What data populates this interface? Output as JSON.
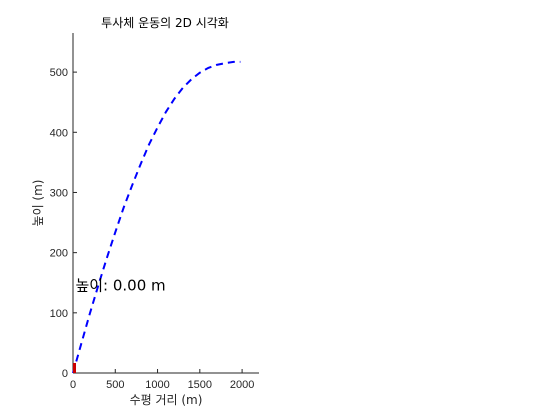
{
  "chart_data": {
    "type": "line",
    "title": "투사체 운동의 2D 시각화",
    "xlabel": "수평 거리 (m)",
    "ylabel": "높이 (m)",
    "xlim": [
      0,
      2200
    ],
    "ylim": [
      0,
      565
    ],
    "xticks": [
      0,
      500,
      1000,
      1500,
      2000
    ],
    "yticks": [
      0,
      100,
      200,
      300,
      400,
      500
    ],
    "grid": false,
    "series": [
      {
        "style": "dashed",
        "color": "#0000ff",
        "x": [
          0,
          100,
          200,
          300,
          400,
          500,
          600,
          700,
          800,
          900,
          1000,
          1100,
          1200,
          1300,
          1400,
          1500,
          1600,
          1700,
          1800,
          1900,
          1980
        ],
        "y": [
          0,
          50,
          99,
          146,
          191,
          234,
          275,
          312,
          347,
          380,
          408,
          434,
          456,
          474,
          488,
          499,
          507,
          512,
          515,
          517,
          517
        ]
      }
    ],
    "marker": {
      "x": 0,
      "y": 0,
      "color": "#cc0000"
    },
    "annotation": {
      "text": "높이: 0.00 m",
      "x": 100,
      "y": 145
    }
  }
}
